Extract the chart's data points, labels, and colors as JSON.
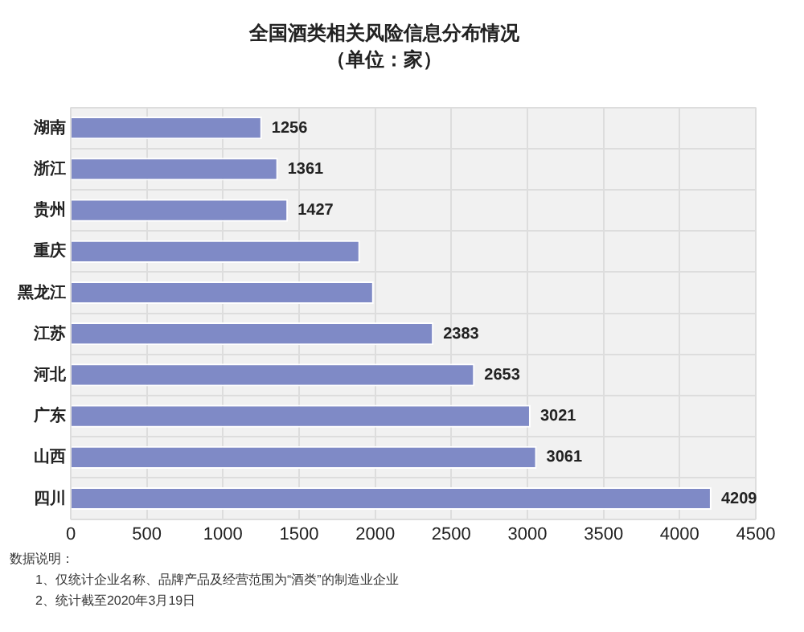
{
  "chart_data": {
    "type": "bar",
    "orientation": "horizontal",
    "title": "全国酒类相关风险信息分布情况",
    "subtitle": "（单位：家）",
    "categories": [
      "湖南",
      "浙江",
      "贵州",
      "重庆",
      "黑龙江",
      "江苏",
      "河北",
      "广东",
      "山西",
      "四川"
    ],
    "values": [
      1256,
      1361,
      1427,
      1900,
      1990,
      2383,
      2653,
      3021,
      3061,
      4209
    ],
    "value_labels": [
      "1256",
      "1361",
      "1427",
      null,
      null,
      "2383",
      "2653",
      "3021",
      "3061",
      "4209"
    ],
    "color": "#7f8ac6",
    "xlim": [
      0,
      4500
    ],
    "xticks": [
      0,
      500,
      1000,
      1500,
      2000,
      2500,
      3000,
      3500,
      4000,
      4500
    ],
    "grid": true,
    "legend": false,
    "annotations": [
      "数据说明：",
      "1、仅统计企业名称、品牌产品及经营范围为“酒类”的制造业企业",
      "2、统计截至2020年3月19日"
    ]
  }
}
